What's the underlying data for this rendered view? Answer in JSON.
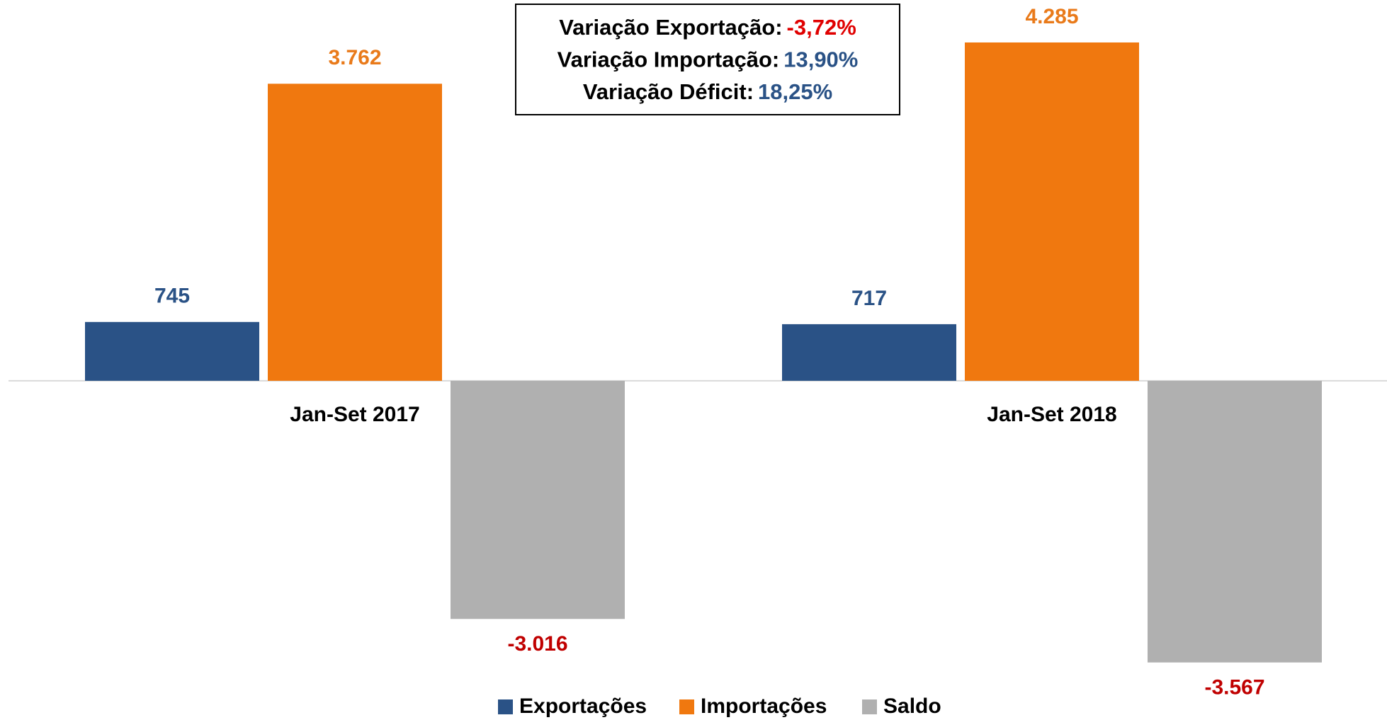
{
  "chart_data": {
    "type": "bar",
    "categories": [
      "Jan-Set 2017",
      "Jan-Set 2018"
    ],
    "series": [
      {
        "name": "Exportações",
        "color": "#2a5286",
        "label_color": "#2a5286",
        "values": [
          745,
          717
        ],
        "value_labels": [
          "745",
          "717"
        ]
      },
      {
        "name": "Importações",
        "color": "#f0780f",
        "label_color": "#e97a1a",
        "values": [
          3762,
          4285
        ],
        "value_labels": [
          "3.762",
          "4.285"
        ]
      },
      {
        "name": "Saldo",
        "color": "#b0b0b0",
        "label_color": "#c00000",
        "values": [
          -3016,
          -3567
        ],
        "value_labels": [
          "-3.016",
          "-3.567"
        ]
      }
    ],
    "ylim": [
      -4000,
      4500
    ],
    "annotations": [
      {
        "label": "Variação Exportação:",
        "value": "-3,72%",
        "color": "#e00000"
      },
      {
        "label": "Variação Importação:",
        "value": "13,90%",
        "color": "#2a5286"
      },
      {
        "label": "Variação Déficit:",
        "value": "18,25%",
        "color": "#2a5286"
      }
    ],
    "legend": "bottom"
  }
}
